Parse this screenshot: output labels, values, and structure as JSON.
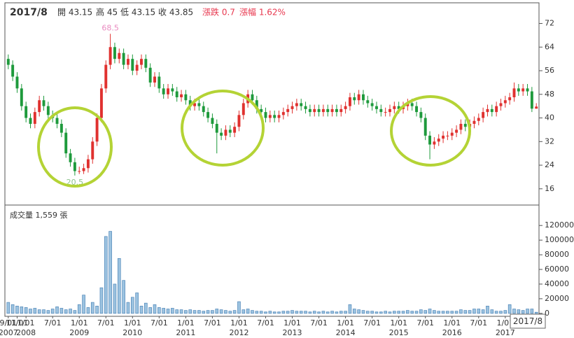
{
  "chart_data": {
    "type": "candlestick",
    "title": "2017/8",
    "quote": [
      "開 43.15",
      "高 45",
      "低 43.15",
      "收 43.85",
      "漲跌 0.7",
      "漲幅 1.62%"
    ],
    "volume_label": "成交量 1,559 張",
    "up_color": "#e0312f",
    "down_color": "#1e9a3c",
    "volume_color": "#9cc3e0",
    "volume_edge": "#4f86b8",
    "max_color": "#e98bc0",
    "min_color": "#8cc48c",
    "open": [
      60,
      58,
      54,
      50,
      44,
      40,
      38,
      42,
      46,
      44,
      41,
      40,
      38,
      35,
      28,
      25,
      22,
      22,
      23,
      26,
      32,
      40,
      50,
      58,
      64,
      60,
      62,
      58,
      60,
      56,
      58,
      60,
      57,
      52,
      54,
      50,
      48,
      50,
      49,
      47,
      48,
      46,
      44,
      45,
      44,
      42,
      40,
      38,
      35,
      34,
      36,
      35,
      37,
      41,
      45,
      48,
      46,
      43,
      42,
      40,
      41,
      40,
      41,
      42,
      43,
      44,
      45,
      44,
      43,
      42,
      43,
      42,
      43,
      42,
      43,
      42,
      43,
      44,
      47,
      46,
      48,
      46,
      45,
      44,
      43,
      42,
      42,
      43,
      44,
      43,
      44,
      45,
      44,
      42,
      40,
      34,
      31,
      32,
      33,
      34,
      34,
      35,
      36,
      38,
      37,
      38,
      39,
      40,
      42,
      43,
      42,
      44,
      45,
      46,
      47,
      50,
      49,
      50,
      49,
      43.15
    ],
    "high": [
      61.5,
      59.5,
      55.5,
      51.5,
      45.5,
      41.5,
      43.5,
      47.5,
      47.5,
      45.5,
      42.5,
      41.5,
      39.5,
      36.5,
      29.5,
      26.5,
      23.5,
      24.5,
      27.5,
      33.5,
      41.5,
      51.5,
      59.5,
      68.5,
      65.5,
      63.5,
      63.5,
      61.5,
      61.5,
      59.5,
      61.5,
      61.5,
      58.5,
      55.5,
      55.5,
      51.5,
      51.5,
      51.5,
      50.5,
      49.5,
      49.5,
      47.5,
      46.5,
      46.5,
      45.5,
      43.5,
      41.5,
      39.5,
      36.5,
      37.5,
      37.5,
      38.5,
      42.5,
      46.5,
      49.5,
      49.5,
      47.5,
      44.5,
      43.5,
      42.5,
      42.5,
      42.5,
      43.5,
      44.5,
      45.5,
      46.5,
      46.5,
      45.5,
      44.5,
      44.5,
      44.5,
      44.5,
      44.5,
      44.5,
      44.5,
      44.5,
      45.5,
      48.5,
      48.5,
      49.5,
      49.5,
      47.5,
      46.5,
      45.5,
      44.5,
      43.5,
      44.5,
      45.5,
      45.5,
      45.5,
      46.5,
      46.5,
      45.5,
      43.5,
      41.5,
      35.5,
      33.5,
      34.5,
      35.5,
      35.5,
      36.5,
      37.5,
      39.5,
      39.5,
      39.5,
      40.5,
      41.5,
      43.5,
      44.5,
      44.5,
      45.5,
      46.5,
      47.5,
      48.5,
      52,
      51.5,
      51.5,
      51.5,
      50.5,
      45
    ],
    "low": [
      56.5,
      52.5,
      48.5,
      42.5,
      38.5,
      36.5,
      36.5,
      40.5,
      42.5,
      39.5,
      38.5,
      36.5,
      33.5,
      26.5,
      23.5,
      20.5,
      21,
      21,
      21.5,
      24.5,
      30.5,
      38.5,
      48.5,
      56.5,
      58.5,
      58.5,
      56.5,
      56.5,
      54.5,
      54.5,
      56.5,
      55.5,
      50.5,
      50.5,
      48.5,
      46.5,
      46.5,
      47.5,
      45.5,
      45.5,
      44.5,
      42.5,
      42.5,
      42.5,
      40.5,
      38.5,
      36.5,
      28,
      32.5,
      32.5,
      33.5,
      33.5,
      35.5,
      39.5,
      43.5,
      44.5,
      41.5,
      40.5,
      38.5,
      38.5,
      38.5,
      38.5,
      39.5,
      40.5,
      41.5,
      42.5,
      42.5,
      41.5,
      40.5,
      40.5,
      40.5,
      40.5,
      40.5,
      40.5,
      40.5,
      40.5,
      41.5,
      42.5,
      44.5,
      44.5,
      44.5,
      43.5,
      42.5,
      41.5,
      40.5,
      40.5,
      40.5,
      41.5,
      41.5,
      41.5,
      42.5,
      42.5,
      40.5,
      38.5,
      32.5,
      26,
      29.5,
      30.5,
      31.5,
      32.5,
      32.5,
      33.5,
      34.5,
      35.5,
      35.5,
      36.5,
      37.5,
      38.5,
      40.5,
      40.5,
      40.5,
      42.5,
      43.5,
      44.5,
      45.5,
      47.5,
      47.5,
      47.5,
      42,
      43.15
    ],
    "close": [
      58,
      54,
      50,
      44,
      40,
      38,
      42,
      46,
      44,
      41,
      40,
      38,
      35,
      28,
      25,
      22,
      22,
      23,
      26,
      32,
      40,
      50,
      58,
      64,
      60,
      62,
      58,
      60,
      56,
      58,
      60,
      57,
      52,
      54,
      50,
      48,
      50,
      49,
      47,
      48,
      46,
      44,
      45,
      44,
      42,
      40,
      38,
      35,
      34,
      36,
      35,
      37,
      41,
      45,
      48,
      46,
      43,
      42,
      40,
      41,
      40,
      41,
      42,
      43,
      44,
      45,
      44,
      43,
      42,
      43,
      42,
      43,
      42,
      43,
      42,
      43,
      44,
      47,
      46,
      48,
      46,
      45,
      44,
      43,
      42,
      42,
      43,
      44,
      43,
      44,
      45,
      44,
      42,
      40,
      34,
      31,
      32,
      33,
      34,
      34,
      35,
      36,
      38,
      37,
      38,
      39,
      40,
      42,
      43,
      42,
      44,
      45,
      46,
      47,
      50,
      49,
      50,
      49,
      43.15,
      43.85
    ],
    "volume": [
      15000,
      12000,
      10000,
      9000,
      8000,
      6000,
      7000,
      5000,
      5000,
      4000,
      6000,
      9000,
      7000,
      5000,
      6000,
      4000,
      12000,
      25000,
      8000,
      15000,
      10000,
      35000,
      105000,
      112000,
      40000,
      75000,
      45000,
      15000,
      22000,
      28000,
      10000,
      14000,
      8000,
      12000,
      8000,
      7000,
      6000,
      7000,
      5000,
      5000,
      4000,
      5000,
      4000,
      4000,
      3000,
      4000,
      4000,
      6000,
      5000,
      4000,
      3000,
      4000,
      16000,
      5000,
      6000,
      4000,
      3000,
      3000,
      2000,
      3000,
      2000,
      2000,
      3000,
      3000,
      4000,
      3000,
      3000,
      3000,
      2000,
      3000,
      2000,
      3000,
      2000,
      3000,
      2000,
      3000,
      3000,
      12000,
      6000,
      5000,
      4000,
      3000,
      3000,
      2000,
      2000,
      3000,
      2000,
      3000,
      3000,
      3000,
      4000,
      3000,
      3000,
      5000,
      4000,
      6000,
      4000,
      3000,
      3000,
      3000,
      3000,
      3000,
      5000,
      4000,
      4000,
      6000,
      6000,
      5000,
      10000,
      5000,
      3000,
      3000,
      4000,
      12000,
      6000,
      5000,
      4000,
      6000,
      6000,
      1559
    ],
    "xlim": [
      -0.6,
      119.6
    ],
    "xticks": [
      {
        "value": 0,
        "label": "9/01",
        "year": "2007"
      },
      {
        "value": 2,
        "label": "11/01"
      },
      {
        "value": 4,
        "label": "1/01",
        "year": "2008"
      },
      {
        "value": 10,
        "label": "7/01"
      },
      {
        "value": 16,
        "label": "1/01",
        "year": "2009"
      },
      {
        "value": 22,
        "label": "7/01"
      },
      {
        "value": 28,
        "label": "1/01",
        "year": "2010"
      },
      {
        "value": 34,
        "label": "7/01"
      },
      {
        "value": 40,
        "label": "1/01",
        "year": "2011"
      },
      {
        "value": 46,
        "label": "7/01"
      },
      {
        "value": 52,
        "label": "1/01",
        "year": "2012"
      },
      {
        "value": 58,
        "label": "7/01"
      },
      {
        "value": 64,
        "label": "1/01",
        "year": "2013"
      },
      {
        "value": 70,
        "label": "7/01"
      },
      {
        "value": 76,
        "label": "1/01",
        "year": "2014"
      },
      {
        "value": 82,
        "label": "7/01"
      },
      {
        "value": 88,
        "label": "1/01",
        "year": "2015"
      },
      {
        "value": 94,
        "label": "7/01"
      },
      {
        "value": 100,
        "label": "1/01",
        "year": "2016"
      },
      {
        "value": 106,
        "label": "7/01"
      },
      {
        "value": 112,
        "label": "1/01",
        "year": "2017"
      }
    ],
    "ylim": [
      10.5,
      79
    ],
    "yticks": [
      16,
      24,
      32,
      40,
      48,
      56,
      64,
      72
    ],
    "y2lim": [
      -4000,
      146000
    ],
    "y2ticks": [
      0,
      20000,
      40000,
      60000,
      80000,
      100000,
      120000
    ]
  }
}
